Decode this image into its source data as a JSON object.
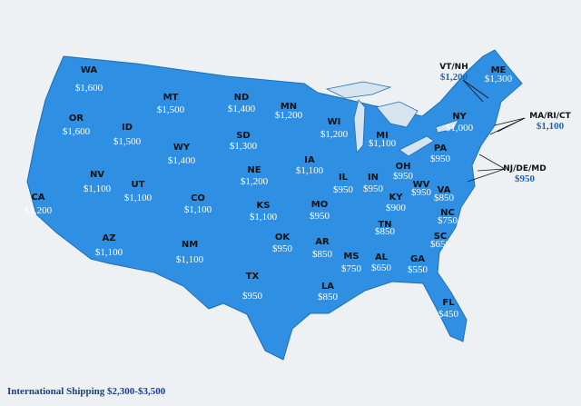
{
  "states": [
    {
      "code": "WA",
      "price": "$1,600"
    },
    {
      "code": "OR",
      "price": "$1,600"
    },
    {
      "code": "ID",
      "price": "$1,500"
    },
    {
      "code": "MT",
      "price": "$1,500"
    },
    {
      "code": "WY",
      "price": "$1,400"
    },
    {
      "code": "ND",
      "price": "$1,400"
    },
    {
      "code": "SD",
      "price": "$1,300"
    },
    {
      "code": "NE",
      "price": "$1,200"
    },
    {
      "code": "NV",
      "price": "$1,100"
    },
    {
      "code": "UT",
      "price": "$1,100"
    },
    {
      "code": "CO",
      "price": "$1,100"
    },
    {
      "code": "CA",
      "price": "$1,200"
    },
    {
      "code": "AZ",
      "price": "$1,100"
    },
    {
      "code": "NM",
      "price": "$1,100"
    },
    {
      "code": "KS",
      "price": "$1,100"
    },
    {
      "code": "OK",
      "price": "$950"
    },
    {
      "code": "TX",
      "price": "$950"
    },
    {
      "code": "MN",
      "price": "$1,200"
    },
    {
      "code": "IA",
      "price": "$1,100"
    },
    {
      "code": "WI",
      "price": "$1,200"
    },
    {
      "code": "MO",
      "price": "$950"
    },
    {
      "code": "AR",
      "price": "$850"
    },
    {
      "code": "LA",
      "price": "$850"
    },
    {
      "code": "MS",
      "price": "$750"
    },
    {
      "code": "IL",
      "price": "$950"
    },
    {
      "code": "MI",
      "price": "$1,100"
    },
    {
      "code": "IN",
      "price": "$950"
    },
    {
      "code": "OH",
      "price": "$950"
    },
    {
      "code": "KY",
      "price": "$900"
    },
    {
      "code": "TN",
      "price": "$850"
    },
    {
      "code": "AL",
      "price": "$650"
    },
    {
      "code": "GA",
      "price": "$550"
    },
    {
      "code": "FL",
      "price": "$450"
    },
    {
      "code": "SC",
      "price": "$650"
    },
    {
      "code": "NC",
      "price": "$750"
    },
    {
      "code": "VA",
      "price": "$850"
    },
    {
      "code": "WV",
      "price": "$950"
    },
    {
      "code": "PA",
      "price": "$950"
    },
    {
      "code": "NY",
      "price": "$1,000"
    },
    {
      "code": "ME",
      "price": "$1,300"
    }
  ],
  "callouts": [
    {
      "code": "VT/NH",
      "price": "$1,200"
    },
    {
      "code": "MA/RI/CT",
      "price": "$1,100"
    },
    {
      "code": "NJ/DE/MD",
      "price": "$950"
    }
  ],
  "footer": "International Shipping $2,300-$3,500"
}
